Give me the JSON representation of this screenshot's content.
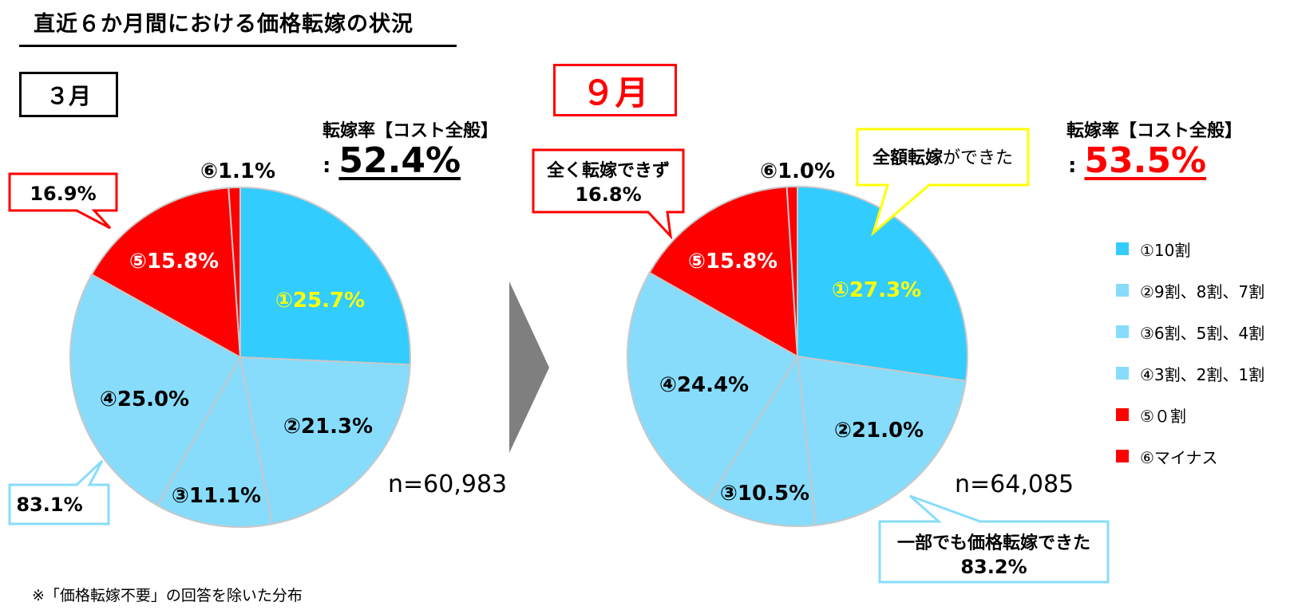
{
  "title": "直近６か月間における価格転嫁の状況",
  "footnote": "※「価格転嫁不要」の回答を除いた分布",
  "colors": {
    "c1": "#33ccff",
    "c234": "#87dcfc",
    "c56": "#ff0000",
    "red": "#ff0000",
    "yellow": "#ffff00",
    "lightblue": "#87dcfc",
    "gray": "#7f7f7f"
  },
  "left": {
    "month": "３月",
    "rate_label": "転嫁率【コスト全般】",
    "rate_value": "52.4%",
    "n": "n=60,983",
    "callout_red": "16.9%",
    "callout_blue": "83.1%"
  },
  "right": {
    "month": "９月",
    "rate_label": "転嫁率【コスト全般】",
    "rate_value": "53.5%",
    "n": "n=64,085",
    "callout_red_line1": "全く転嫁できず",
    "callout_red_line2": "16.8%",
    "callout_yellow_bold": "全額転嫁",
    "callout_yellow_rest": "ができた",
    "callout_blue_line1": "一部でも価格転嫁できた",
    "callout_blue_line2": "83.2%"
  },
  "legend": [
    {
      "label": "①10割",
      "color": "#33ccff"
    },
    {
      "label": "②9割、8割、7割",
      "color": "#87dcfc"
    },
    {
      "label": "③6割、5割、4割",
      "color": "#87dcfc"
    },
    {
      "label": "④3割、2割、1割",
      "color": "#87dcfc"
    },
    {
      "label": "⑤０割",
      "color": "#ff0000"
    },
    {
      "label": "⑥マイナス",
      "color": "#ff0000"
    }
  ],
  "chart_data": [
    {
      "type": "pie",
      "title": "３月",
      "categories": [
        "①10割",
        "②9割、8割、7割",
        "③6割、5割、4割",
        "④3割、2割、1割",
        "⑤０割",
        "⑥マイナス"
      ],
      "values": [
        25.7,
        21.3,
        11.1,
        25.0,
        15.8,
        1.1
      ],
      "data_labels": [
        "①25.7%",
        "②21.3%",
        "③11.1%",
        "④25.0%",
        "⑤15.8%",
        "⑥1.1%"
      ],
      "label_colors": [
        "#ffff00",
        "#000000",
        "#000000",
        "#000000",
        "#ffffff",
        "#000000"
      ],
      "colors": [
        "#33ccff",
        "#87dcfc",
        "#87dcfc",
        "#87dcfc",
        "#ff0000",
        "#ff0000"
      ]
    },
    {
      "type": "pie",
      "title": "９月",
      "categories": [
        "①10割",
        "②9割、8割、7割",
        "③6割、5割、4割",
        "④3割、2割、1割",
        "⑤０割",
        "⑥マイナス"
      ],
      "values": [
        27.3,
        21.0,
        10.5,
        24.4,
        15.8,
        1.0
      ],
      "data_labels": [
        "①27.3%",
        "②21.0%",
        "③10.5%",
        "④24.4%",
        "⑤15.8%",
        "⑥1.0%"
      ],
      "label_colors": [
        "#ffff00",
        "#000000",
        "#000000",
        "#000000",
        "#ffffff",
        "#000000"
      ],
      "colors": [
        "#33ccff",
        "#87dcfc",
        "#87dcfc",
        "#87dcfc",
        "#ff0000",
        "#ff0000"
      ]
    }
  ]
}
